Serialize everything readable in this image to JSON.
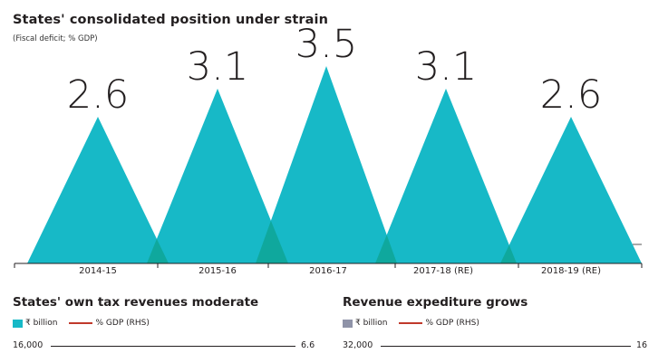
{
  "chart_title": "States' consolidated position under strain",
  "chart_subtitle": "(Fiscal deficit; % GDP)",
  "chart_data": {
    "type": "triangle-bar",
    "title": "States' consolidated position under strain",
    "subtitle": "(Fiscal deficit; % GDP)",
    "categories": [
      "2014-15",
      "2015-16",
      "2016-17",
      "2017-18 (RE)",
      "2018-19 (RE)"
    ],
    "values": [
      2.6,
      3.1,
      3.5,
      3.1,
      2.6
    ],
    "color": "#17b9c7",
    "overlap_color": "#0fa89d"
  },
  "panel_left": {
    "title": "States' own tax revenues moderate",
    "legend_bar": "₹ billion",
    "legend_line": "% GDP (RHS)",
    "bar_color": "#17b9c7",
    "line_color": "#c0392b",
    "y_left_top": "16,000",
    "y_right_top": "6.6"
  },
  "panel_right": {
    "title": "Revenue expediture grows",
    "legend_bar": "₹ billion",
    "legend_line": "% GDP (RHS)",
    "bar_color": "#8f93a8",
    "line_color": "#c0392b",
    "y_left_top": "32,000",
    "y_right_top": "16"
  }
}
